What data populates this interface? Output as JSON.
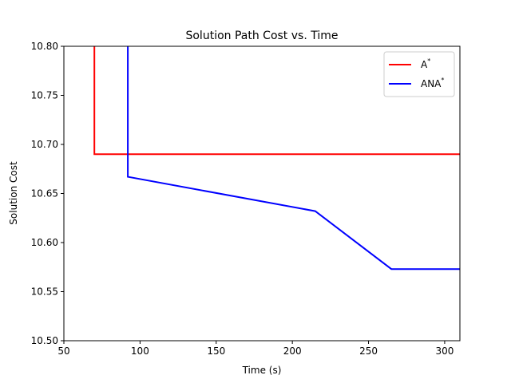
{
  "chart_data": {
    "type": "line",
    "title": "Solution Path Cost vs. Time",
    "xlabel": "Time (s)",
    "ylabel": "Solution Cost",
    "xlim": [
      50,
      310
    ],
    "ylim": [
      10.5,
      10.8
    ],
    "xticks": [
      50,
      100,
      150,
      200,
      250,
      300
    ],
    "yticks": [
      10.5,
      10.55,
      10.6,
      10.65,
      10.7,
      10.75,
      10.8
    ],
    "ytick_labels": [
      "10.50",
      "10.55",
      "10.60",
      "10.65",
      "10.70",
      "10.75",
      "10.80"
    ],
    "grid": false,
    "legend_position": "top-right",
    "series": [
      {
        "name": "A",
        "name_superscript": "*",
        "color": "#ff0000",
        "x": [
          70,
          70,
          310
        ],
        "y": [
          10.8,
          10.69,
          10.69
        ]
      },
      {
        "name": "ANA",
        "name_superscript": "*",
        "color": "#0000ff",
        "x": [
          92,
          92,
          215,
          265,
          310
        ],
        "y": [
          10.8,
          10.667,
          10.632,
          10.573,
          10.573
        ]
      }
    ]
  }
}
